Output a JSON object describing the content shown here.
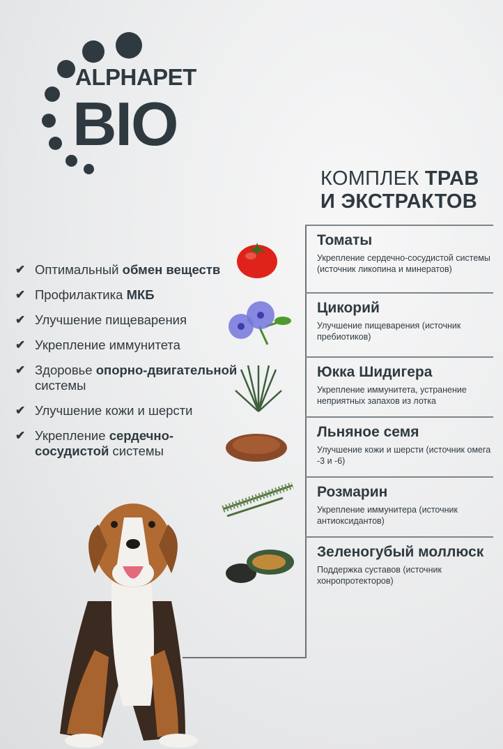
{
  "logo": {
    "line1": "ALPHAPET",
    "line2": "BIO"
  },
  "heading": {
    "normal1": "КОМПЛЕК ",
    "bold1": "ТРАВ",
    "bold2": "И ЭКСТРАКТОВ"
  },
  "benefits": [
    {
      "parts": [
        {
          "t": "Оптимальный "
        },
        {
          "t": "обмен веществ",
          "b": true
        }
      ]
    },
    {
      "parts": [
        {
          "t": "Профилактика "
        },
        {
          "t": "МКБ",
          "b": true
        }
      ]
    },
    {
      "parts": [
        {
          "t": "Улучшение пищеварения"
        }
      ]
    },
    {
      "parts": [
        {
          "t": "Укрепление иммунитета"
        }
      ]
    },
    {
      "parts": [
        {
          "t": "Здоровье "
        },
        {
          "t": "опорно-двигательной",
          "b": true
        },
        {
          "t": " системы"
        }
      ]
    },
    {
      "parts": [
        {
          "t": "Улучшение кожи и шерсти"
        }
      ]
    },
    {
      "parts": [
        {
          "t": "Укрепление "
        },
        {
          "t": "сердечно-сосудистой",
          "b": true
        },
        {
          "t": " системы"
        }
      ]
    }
  ],
  "ingredients": [
    {
      "name": "Томаты",
      "desc": "Укрепление сердечно-сосудистой системы (источник ликопина и минератов)",
      "icon": "tomato"
    },
    {
      "name": "Цикорий",
      "desc": "Улучшение пищеварения (источник пребиотиков)",
      "icon": "chicory-flower"
    },
    {
      "name": "Юкка Шидигера",
      "desc": "Укрепление иммунитета, устранение неприятных запахов из лотка",
      "icon": "yucca"
    },
    {
      "name": "Льняное семя",
      "desc": "Улучшение кожи и шерсти (источник омега -3 и -6)",
      "icon": "flax-seeds"
    },
    {
      "name": "Розмарин",
      "desc": "Укрепление иммунитера (источник антиоксидантов)",
      "icon": "rosemary"
    },
    {
      "name": "Зеленогубый моллюск",
      "desc": "Поддержка суставов (источник хонропротекторов)",
      "icon": "mussel"
    }
  ],
  "colors": {
    "text": "#2f3a40",
    "line": "#6b7378",
    "tomato": "#e0231a",
    "chicory": "#6f6fd8"
  }
}
